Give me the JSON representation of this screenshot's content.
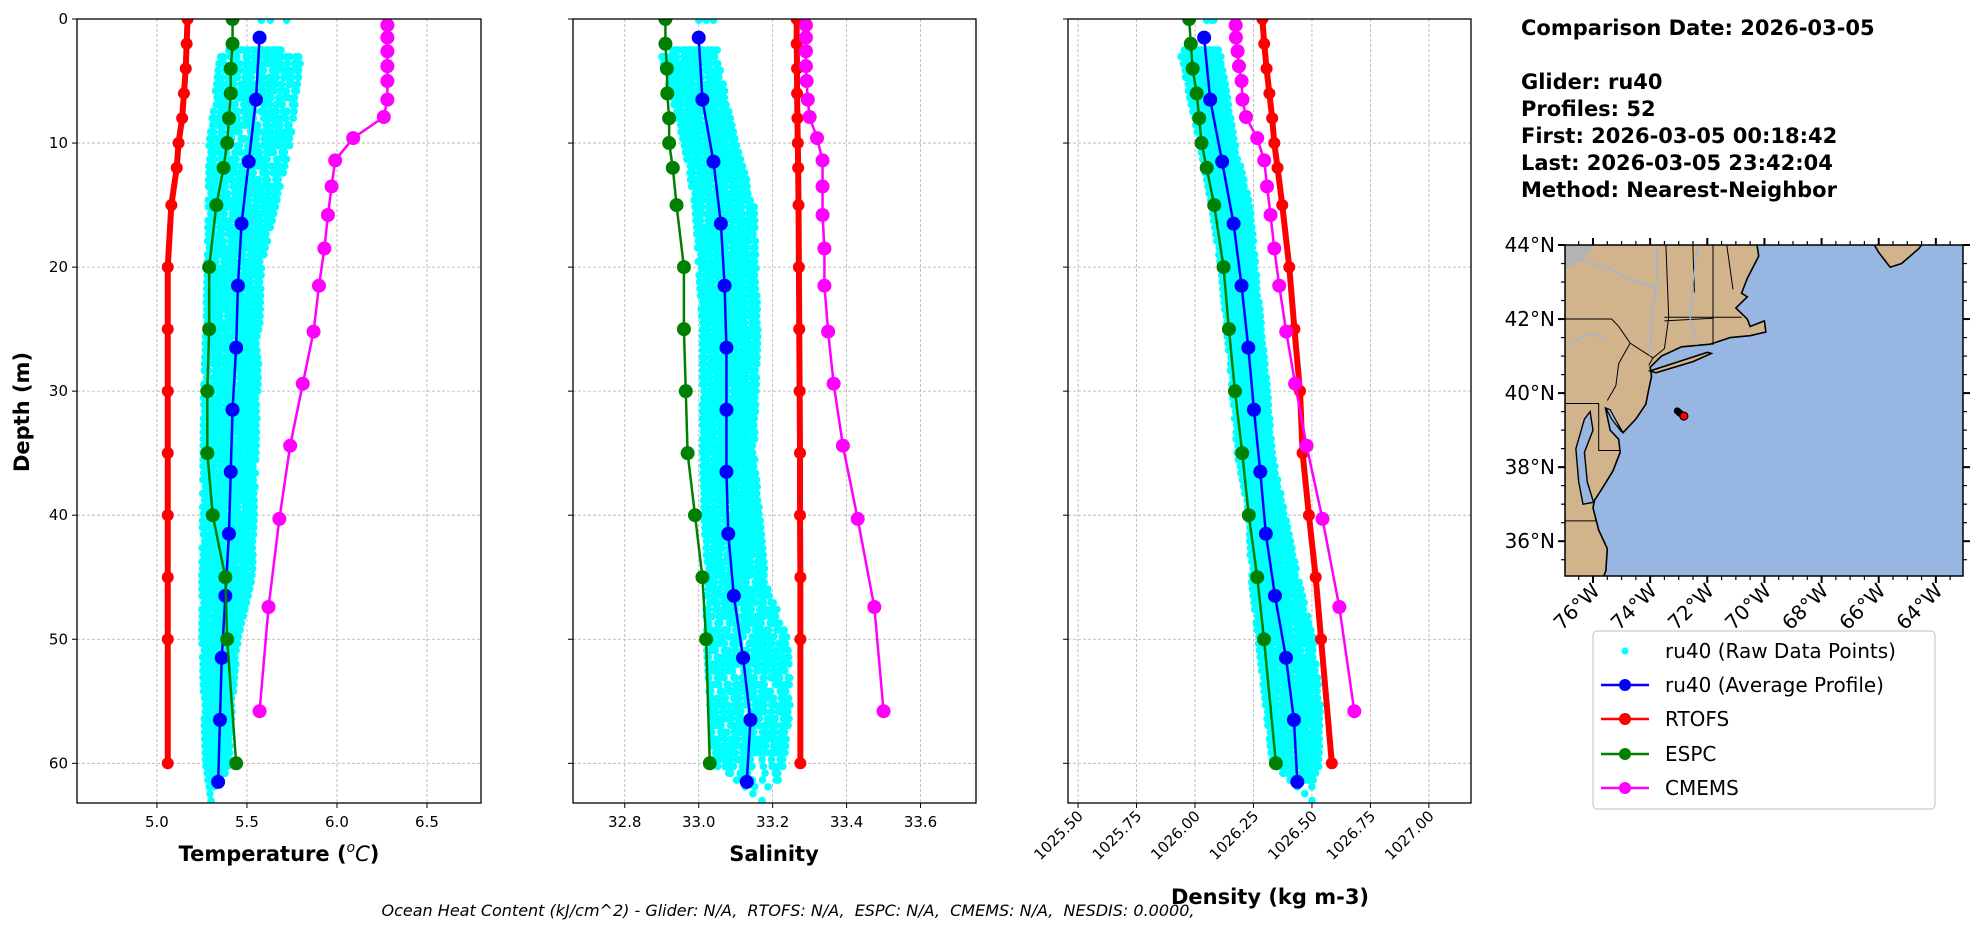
{
  "info": {
    "comparison_date": "Comparison Date: 2026-03-05",
    "glider": "Glider: ru40",
    "profiles": "Profiles: 52",
    "first": "First: 2026-03-05 00:18:42",
    "last": "Last: 2026-03-05 23:42:04",
    "method": "Method: Nearest-Neighbor"
  },
  "footnote": "Ocean Heat Content (kJ/cm^2) - Glider: N/A,  RTOFS: N/A,  ESPC: N/A,  CMEMS: N/A,  NESDIS: 0.0000,",
  "legend": {
    "placement": "lower-right",
    "entries": [
      {
        "label": "ru40 (Raw Data Points)",
        "color": "#00ffff",
        "style": "points"
      },
      {
        "label": "ru40 (Average Profile)",
        "color": "#0000ff",
        "style": "line-marker"
      },
      {
        "label": "RTOFS",
        "color": "#ff0000",
        "style": "line-marker"
      },
      {
        "label": "ESPC",
        "color": "#008000",
        "style": "line-marker"
      },
      {
        "label": "CMEMS",
        "color": "#ff00ff",
        "style": "line-marker"
      }
    ]
  },
  "map": {
    "lat_ticks": [
      "44°N",
      "42°N",
      "40°N",
      "38°N",
      "36°N"
    ],
    "lat_values": [
      44,
      42,
      40,
      38,
      36
    ],
    "lon_ticks": [
      "76°W",
      "74°W",
      "72°W",
      "70°W",
      "68°W",
      "66°W",
      "64°W"
    ],
    "lon_values": [
      -76,
      -74,
      -72,
      -70,
      -68,
      -66,
      -64
    ],
    "extent": {
      "lon": [
        -76.98,
        -63.05
      ],
      "lat": [
        35.06,
        44.0
      ]
    },
    "land_color": "#d2b48c",
    "ocean_color": "#97b6e1",
    "glider_track": [
      [
        -73.05,
        39.52
      ],
      [
        -72.95,
        39.45
      ]
    ],
    "glider_position": [
      -72.82,
      39.38
    ],
    "glider_marker_color": "#ff0000"
  },
  "chart_data": [
    {
      "id": "temperature",
      "type": "line",
      "xlabel_prefix": "Temperature (",
      "xlabel_sup": "o",
      "xlabel_unit": "C",
      "xlabel_suffix": ")",
      "ylabel": "Depth (m)",
      "xlim": [
        4.556,
        6.8
      ],
      "ylim": [
        63.2,
        0
      ],
      "y_inverted": true,
      "grid": true,
      "xticks": [
        5.0,
        5.5,
        6.0,
        6.5
      ],
      "xtick_labels": [
        "5.0",
        "5.5",
        "6.0",
        "6.5"
      ],
      "yticks": [
        0,
        10,
        20,
        30,
        40,
        50,
        60
      ],
      "ytick_labels": [
        "0",
        "10",
        "20",
        "30",
        "40",
        "50",
        "60"
      ],
      "raw_envelope": {
        "depth": [
          2.5,
          3,
          10,
          20,
          30,
          45,
          50,
          55,
          60,
          63
        ],
        "min": [
          5.4,
          5.35,
          5.29,
          5.28,
          5.26,
          5.25,
          5.25,
          5.26,
          5.27,
          5.3
        ],
        "max": [
          5.7,
          5.8,
          5.74,
          5.58,
          5.56,
          5.53,
          5.45,
          5.42,
          5.4,
          5.32
        ]
      },
      "raw_surface": [
        5.58,
        5.63,
        5.72
      ],
      "series": [
        {
          "name": "ru40 (Average Profile)",
          "color": "#0000ff",
          "depth": [
            1.5,
            6.5,
            11.5,
            16.5,
            21.5,
            26.5,
            31.5,
            36.5,
            41.5,
            46.5,
            51.5,
            56.5,
            61.5
          ],
          "values": [
            5.57,
            5.55,
            5.51,
            5.47,
            5.45,
            5.44,
            5.42,
            5.41,
            5.4,
            5.38,
            5.36,
            5.35,
            5.34
          ]
        },
        {
          "name": "RTOFS",
          "color": "#ff0000",
          "depth": [
            0,
            2,
            4,
            6,
            8,
            10,
            12,
            15,
            20,
            25,
            30,
            35,
            40,
            45,
            50,
            60
          ],
          "values": [
            5.17,
            5.165,
            5.16,
            5.15,
            5.14,
            5.12,
            5.11,
            5.08,
            5.06,
            5.06,
            5.06,
            5.06,
            5.06,
            5.06,
            5.06,
            5.06
          ]
        },
        {
          "name": "ESPC",
          "color": "#008000",
          "depth": [
            0,
            2,
            4,
            6,
            8,
            10,
            12,
            15,
            20,
            25,
            30,
            35,
            40,
            45,
            50,
            60
          ],
          "values": [
            5.42,
            5.42,
            5.41,
            5.41,
            5.4,
            5.39,
            5.37,
            5.33,
            5.29,
            5.29,
            5.28,
            5.28,
            5.31,
            5.38,
            5.39,
            5.44
          ]
        },
        {
          "name": "CMEMS",
          "color": "#ff00ff",
          "depth": [
            0.5,
            1.5,
            2.6,
            3.8,
            5.0,
            6.5,
            7.9,
            9.6,
            11.4,
            13.5,
            15.8,
            18.5,
            21.5,
            25.2,
            29.4,
            34.4,
            40.3,
            47.4,
            55.8
          ],
          "values": [
            6.28,
            6.28,
            6.28,
            6.28,
            6.28,
            6.28,
            6.26,
            6.09,
            5.99,
            5.97,
            5.95,
            5.93,
            5.9,
            5.87,
            5.81,
            5.74,
            5.68,
            5.62,
            5.57
          ]
        }
      ]
    },
    {
      "id": "salinity",
      "type": "line",
      "xlabel": "Salinity",
      "xlim": [
        32.66,
        33.75
      ],
      "ylim": [
        63.2,
        0
      ],
      "y_inverted": true,
      "grid": true,
      "xticks": [
        32.8,
        33.0,
        33.2,
        33.4,
        33.6
      ],
      "xtick_labels": [
        "32.8",
        "33.0",
        "33.2",
        "33.4",
        "33.6"
      ],
      "yticks": [
        0,
        10,
        20,
        30,
        40,
        50,
        60
      ],
      "raw_envelope": {
        "depth": [
          2.5,
          3,
          10,
          15,
          25,
          35,
          45,
          50,
          55,
          60,
          63
        ],
        "min": [
          32.93,
          32.9,
          32.96,
          32.99,
          33.01,
          33.01,
          33.02,
          33.02,
          33.03,
          33.04,
          33.17
        ],
        "max": [
          33.05,
          33.05,
          33.1,
          33.15,
          33.16,
          33.15,
          33.18,
          33.24,
          33.25,
          33.23,
          33.2
        ]
      },
      "raw_surface": [
        33.0,
        33.02,
        33.04
      ],
      "series": [
        {
          "name": "ru40 (Average Profile)",
          "color": "#0000ff",
          "depth": [
            1.5,
            6.5,
            11.5,
            16.5,
            21.5,
            26.5,
            31.5,
            36.5,
            41.5,
            46.5,
            51.5,
            56.5,
            61.5
          ],
          "values": [
            33.0,
            33.01,
            33.04,
            33.06,
            33.07,
            33.075,
            33.075,
            33.075,
            33.08,
            33.095,
            33.12,
            33.14,
            33.13
          ]
        },
        {
          "name": "RTOFS",
          "color": "#ff0000",
          "depth": [
            0,
            2,
            4,
            6,
            8,
            10,
            12,
            15,
            20,
            25,
            30,
            35,
            40,
            45,
            50,
            60
          ],
          "values": [
            33.265,
            33.265,
            33.266,
            33.266,
            33.267,
            33.268,
            33.269,
            33.27,
            33.271,
            33.272,
            33.273,
            33.274,
            33.274,
            33.275,
            33.275,
            33.275
          ]
        },
        {
          "name": "ESPC",
          "color": "#008000",
          "depth": [
            0,
            2,
            4,
            6,
            8,
            10,
            12,
            15,
            20,
            25,
            30,
            35,
            40,
            45,
            50,
            60
          ],
          "values": [
            32.91,
            32.91,
            32.914,
            32.915,
            32.92,
            32.92,
            32.93,
            32.94,
            32.96,
            32.96,
            32.965,
            32.97,
            32.99,
            33.01,
            33.02,
            33.03
          ]
        },
        {
          "name": "CMEMS",
          "color": "#ff00ff",
          "depth": [
            0.5,
            1.5,
            2.6,
            3.8,
            5.0,
            6.5,
            7.9,
            9.6,
            11.4,
            13.5,
            15.8,
            18.5,
            21.5,
            25.2,
            29.4,
            34.4,
            40.3,
            47.4,
            55.8
          ],
          "values": [
            33.29,
            33.29,
            33.29,
            33.29,
            33.292,
            33.295,
            33.3,
            33.32,
            33.335,
            33.335,
            33.335,
            33.34,
            33.34,
            33.35,
            33.365,
            33.39,
            33.43,
            33.475,
            33.5
          ]
        }
      ]
    },
    {
      "id": "density",
      "type": "line",
      "xlabel": "Density (kg m-3)",
      "xlim": [
        1025.457,
        1027.18
      ],
      "ylim": [
        63.2,
        0
      ],
      "y_inverted": true,
      "grid": true,
      "xticks": [
        1025.5,
        1025.75,
        1026.0,
        1026.25,
        1026.5,
        1026.75,
        1027.0
      ],
      "xtick_labels": [
        "1025.50",
        "1025.75",
        "1026.00",
        "1026.25",
        "1026.50",
        "1026.75",
        "1027.00"
      ],
      "yticks": [
        0,
        10,
        20,
        30,
        40,
        50,
        60
      ],
      "raw_envelope": {
        "depth": [
          2.5,
          3,
          10,
          15,
          20,
          30,
          35,
          40,
          45,
          50,
          55,
          60,
          63
        ],
        "min": [
          1025.95,
          1025.94,
          1026.02,
          1026.07,
          1026.11,
          1026.16,
          1026.18,
          1026.23,
          1026.24,
          1026.27,
          1026.3,
          1026.33,
          1026.5
        ],
        "max": [
          1026.1,
          1026.11,
          1026.17,
          1026.235,
          1026.26,
          1026.31,
          1026.33,
          1026.385,
          1026.44,
          1026.505,
          1026.535,
          1026.53,
          1026.52
        ]
      },
      "raw_surface": [
        1026.05,
        1026.07,
        1026.08
      ],
      "series": [
        {
          "name": "ru40 (Average Profile)",
          "color": "#0000ff",
          "depth": [
            1.5,
            6.5,
            11.5,
            16.5,
            21.5,
            26.5,
            31.5,
            36.5,
            41.5,
            46.5,
            51.5,
            56.5,
            61.5
          ],
          "values": [
            1026.039,
            1026.065,
            1026.116,
            1026.165,
            1026.199,
            1026.228,
            1026.252,
            1026.279,
            1026.303,
            1026.342,
            1026.389,
            1026.423,
            1026.4375
          ]
        },
        {
          "name": "RTOFS",
          "color": "#ff0000",
          "depth": [
            0,
            2,
            4,
            6,
            8,
            10,
            12,
            15,
            20,
            25,
            30,
            35,
            40,
            45,
            50,
            60
          ],
          "values": [
            1026.288,
            1026.296,
            1026.306,
            1026.318,
            1026.33,
            1026.339,
            1026.353,
            1026.373,
            1026.403,
            1026.425,
            1026.449,
            1026.46,
            1026.487,
            1026.516,
            1026.539,
            1026.585
          ]
        },
        {
          "name": "ESPC",
          "color": "#008000",
          "depth": [
            0,
            2,
            4,
            6,
            8,
            10,
            12,
            15,
            20,
            25,
            30,
            35,
            40,
            45,
            50,
            60
          ],
          "values": [
            1025.975,
            1025.982,
            1025.99,
            1026.007,
            1026.018,
            1026.028,
            1026.05,
            1026.082,
            1026.122,
            1026.145,
            1026.171,
            1026.202,
            1026.23,
            1026.266,
            1026.295,
            1026.346
          ]
        },
        {
          "name": "CMEMS",
          "color": "#ff00ff",
          "depth": [
            0.5,
            1.5,
            2.6,
            3.8,
            5.0,
            6.5,
            7.9,
            9.6,
            11.4,
            13.5,
            15.8,
            18.5,
            21.5,
            25.2,
            29.4,
            34.4,
            40.3,
            47.4,
            55.8
          ],
          "values": [
            1026.174,
            1026.175,
            1026.182,
            1026.188,
            1026.199,
            1026.203,
            1026.218,
            1026.266,
            1026.296,
            1026.308,
            1026.323,
            1026.339,
            1026.36,
            1026.39,
            1026.428,
            1026.477,
            1026.545,
            1026.617,
            1026.681
          ]
        }
      ]
    }
  ]
}
